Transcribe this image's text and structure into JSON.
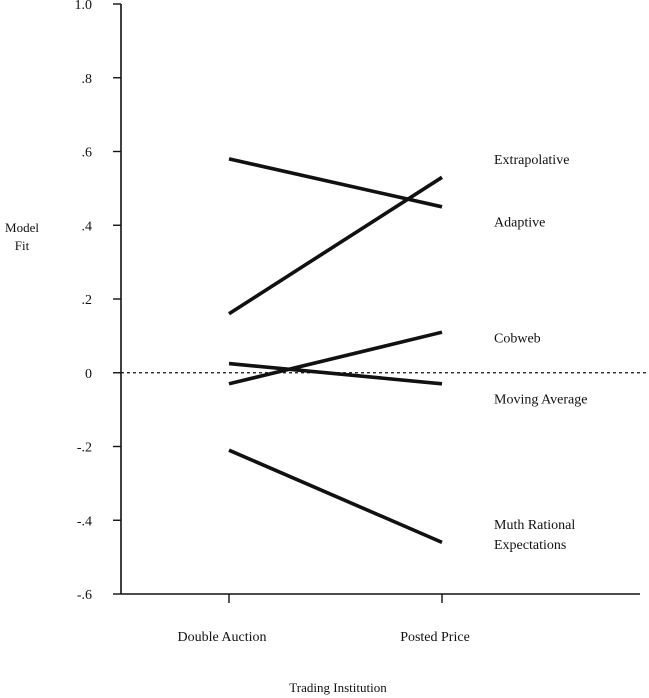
{
  "chart_data": {
    "type": "line",
    "xlabel": "Trading Institution",
    "ylabel": [
      "Model",
      "Fit"
    ],
    "categories": [
      "Double Auction",
      "Posted Price"
    ],
    "ylim": [
      -0.6,
      1.0
    ],
    "yticks": [
      {
        "value": 1.0,
        "label": "1.0"
      },
      {
        "value": 0.8,
        "label": ".8"
      },
      {
        "value": 0.6,
        "label": ".6"
      },
      {
        "value": 0.4,
        "label": ".4"
      },
      {
        "value": 0.2,
        "label": ".2"
      },
      {
        "value": 0.0,
        "label": "0"
      },
      {
        "value": -0.2,
        "label": "-.2"
      },
      {
        "value": -0.4,
        "label": "-.4"
      },
      {
        "value": -0.6,
        "label": "-.6"
      }
    ],
    "reference_line": {
      "value": 0,
      "style": "dashed"
    },
    "grid": false,
    "series": [
      {
        "name": "Extrapolative",
        "values": [
          0.16,
          0.53
        ]
      },
      {
        "name": "Adaptive",
        "values": [
          0.58,
          0.45
        ]
      },
      {
        "name": "Cobweb",
        "values": [
          -0.03,
          0.11
        ]
      },
      {
        "name": "Moving Average",
        "values": [
          0.025,
          -0.03
        ]
      },
      {
        "name": "Muth Rational Expectations",
        "values": [
          -0.21,
          -0.46
        ]
      }
    ],
    "series_labels": [
      {
        "series": "Extrapolative",
        "lines": [
          "Extrapolative"
        ],
        "anchor_value": 0.58
      },
      {
        "series": "Adaptive",
        "lines": [
          "Adaptive"
        ],
        "anchor_value": 0.41
      },
      {
        "series": "Cobweb",
        "lines": [
          "Cobweb"
        ],
        "anchor_value": 0.095
      },
      {
        "series": "Moving Average",
        "lines": [
          "Moving Average"
        ],
        "anchor_value": -0.07
      },
      {
        "series": "Muth Rational Expectations",
        "lines": [
          "Muth Rational",
          "Expectations"
        ],
        "anchor_value": -0.41
      }
    ]
  }
}
